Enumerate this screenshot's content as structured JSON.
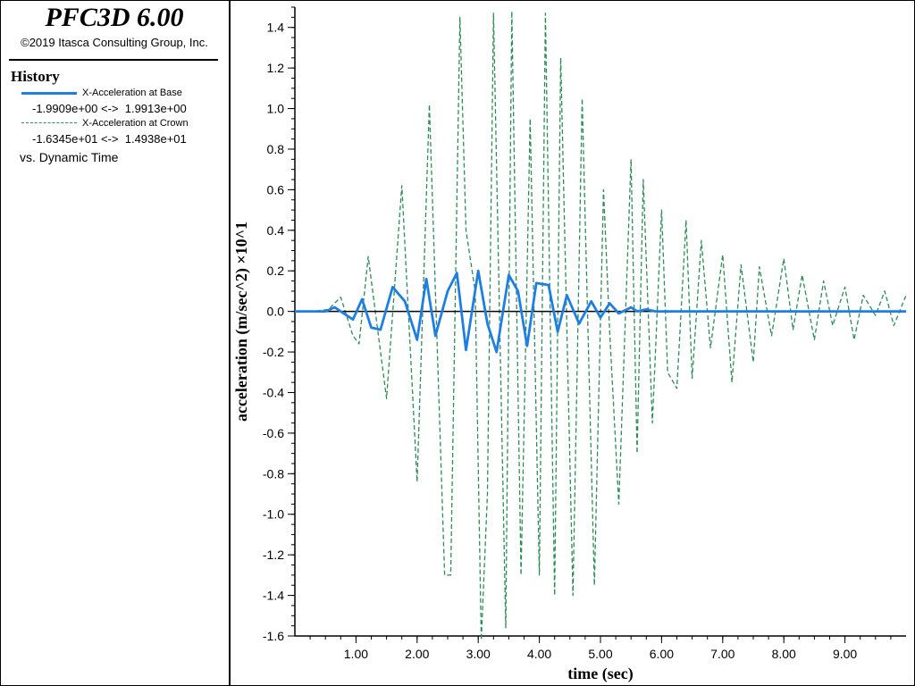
{
  "header": {
    "app_title": "PFC3D 6.00",
    "copyright": "©2019 Itasca Consulting Group, Inc."
  },
  "legend": {
    "heading": "History",
    "series": [
      {
        "name": "X-Acceleration at Base",
        "range": "-1.9909e+00 <->  1.9913e+00",
        "color": "#1f7fe0",
        "style": "solid"
      },
      {
        "name": "X-Acceleration at Crown",
        "range": "-1.6345e+01 <->  1.4938e+01",
        "color": "#2e8b57",
        "style": "dashed"
      }
    ],
    "vs_label": "vs. Dynamic Time"
  },
  "chart_data": {
    "type": "line",
    "title": "",
    "xlabel": "time (sec)",
    "ylabel": "acceleration (m/sec^2) ×10^1",
    "xlim": [
      0.0,
      10.0
    ],
    "ylim": [
      -1.6,
      1.5
    ],
    "xticks": [
      1.0,
      2.0,
      3.0,
      4.0,
      5.0,
      6.0,
      7.0,
      8.0,
      9.0
    ],
    "xtick_labels": [
      "1.00",
      "2.00",
      "3.00",
      "4.00",
      "5.00",
      "6.00",
      "7.00",
      "8.00",
      "9.00"
    ],
    "yticks": [
      1.4,
      1.2,
      1.0,
      0.8,
      0.6,
      0.4,
      0.2,
      0.0,
      -0.2,
      -0.4,
      -0.6,
      -0.8,
      -1.0,
      -1.2,
      -1.4,
      -1.6
    ],
    "ytick_labels": [
      "1.4",
      "1.2",
      "1.0",
      "0.8",
      "0.6",
      "0.4",
      "0.2",
      "0.0",
      "-0.2",
      "-0.4",
      "-0.6",
      "-0.8",
      "-1.0",
      "-1.2",
      "-1.4",
      "-1.6"
    ],
    "zero_line": true,
    "grid": false,
    "series": [
      {
        "name": "X-Acceleration at Base",
        "color": "#1f7fe0",
        "style": "solid",
        "x": [
          0.0,
          0.3,
          0.5,
          0.65,
          0.8,
          0.95,
          1.1,
          1.25,
          1.4,
          1.6,
          1.8,
          2.0,
          2.15,
          2.3,
          2.5,
          2.65,
          2.8,
          3.0,
          3.15,
          3.3,
          3.5,
          3.65,
          3.8,
          3.95,
          4.15,
          4.3,
          4.45,
          4.65,
          4.85,
          5.0,
          5.15,
          5.3,
          5.5,
          5.6,
          5.75,
          5.9,
          6.0,
          7.0,
          8.0,
          9.0,
          10.0
        ],
        "y": [
          0.0,
          0.0,
          0.0,
          0.02,
          -0.01,
          -0.04,
          0.06,
          -0.08,
          -0.09,
          0.12,
          0.05,
          -0.14,
          0.16,
          -0.12,
          0.1,
          0.19,
          -0.19,
          0.2,
          -0.06,
          -0.2,
          0.18,
          0.1,
          -0.17,
          0.14,
          0.13,
          -0.1,
          0.08,
          -0.06,
          0.05,
          -0.03,
          0.04,
          -0.01,
          0.02,
          0.0,
          0.01,
          0.0,
          0.0,
          0.0,
          0.0,
          0.0,
          0.0
        ]
      },
      {
        "name": "X-Acceleration at Crown",
        "color": "#2e8b57",
        "style": "dashed",
        "x": [
          0.0,
          0.3,
          0.55,
          0.75,
          0.95,
          1.05,
          1.2,
          1.5,
          1.75,
          2.0,
          2.2,
          2.45,
          2.55,
          2.7,
          2.8,
          2.95,
          3.05,
          3.15,
          3.25,
          3.45,
          3.55,
          3.7,
          3.85,
          4.0,
          4.1,
          4.25,
          4.35,
          4.55,
          4.7,
          4.9,
          5.05,
          5.15,
          5.3,
          5.5,
          5.6,
          5.7,
          5.85,
          6.0,
          6.1,
          6.25,
          6.4,
          6.5,
          6.65,
          6.8,
          7.0,
          7.15,
          7.3,
          7.5,
          7.6,
          7.8,
          8.0,
          8.15,
          8.3,
          8.5,
          8.65,
          8.8,
          9.0,
          9.15,
          9.3,
          9.5,
          9.65,
          9.8,
          10.0
        ],
        "y": [
          0.0,
          0.0,
          0.01,
          0.07,
          -0.12,
          -0.16,
          0.27,
          -0.43,
          0.62,
          -0.84,
          1.02,
          -1.3,
          -1.3,
          1.45,
          0.4,
          0.1,
          -1.62,
          -0.9,
          1.47,
          -1.56,
          1.48,
          -1.3,
          0.95,
          -1.3,
          1.47,
          -1.4,
          1.25,
          -1.4,
          1.05,
          -1.35,
          0.6,
          -0.1,
          -0.95,
          0.75,
          -0.7,
          0.65,
          -0.55,
          0.5,
          -0.3,
          -0.38,
          0.45,
          -0.33,
          0.35,
          -0.18,
          0.28,
          -0.35,
          0.23,
          -0.25,
          0.22,
          -0.12,
          0.26,
          -0.09,
          0.18,
          -0.14,
          0.15,
          -0.07,
          0.12,
          -0.14,
          0.08,
          -0.02,
          0.1,
          -0.07,
          0.08
        ]
      }
    ]
  }
}
